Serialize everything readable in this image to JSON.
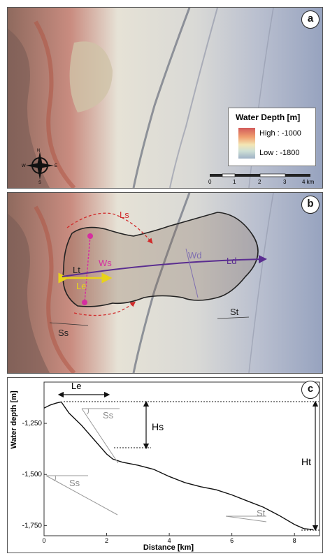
{
  "panel_a": {
    "badge": "a",
    "legend": {
      "title": "Water Depth [m]",
      "high": "High : -1000",
      "low": "Low : -1800"
    },
    "compass": {
      "n": "N",
      "s": "S",
      "e": "E",
      "w": "W"
    },
    "scalebar": {
      "ticks": [
        "0",
        "1",
        "2",
        "3",
        "4 km"
      ]
    }
  },
  "panel_b": {
    "badge": "b",
    "labels": {
      "ls": "Ls",
      "lt": "Lt",
      "ws": "Ws",
      "le": "Le",
      "wd": "Wd",
      "ld": "Ld",
      "st": "St",
      "ss": "Ss"
    }
  },
  "panel_c": {
    "badge": "c",
    "labels": {
      "le": "Le",
      "ss_upper": "Ss",
      "ss_lower": "Ss",
      "hs": "Hs",
      "ht": "Ht",
      "st": "St"
    },
    "chart_data": {
      "type": "line",
      "xlabel": "Distance [km]",
      "ylabel": "Water depth [m]",
      "xlim": [
        0,
        8.8
      ],
      "ylim": [
        -1800,
        -1130
      ],
      "x_ticks": [
        0,
        2,
        4,
        6,
        8
      ],
      "y_ticks": [
        "-1,250",
        "-1,500",
        "-1,750"
      ],
      "y_tick_values": [
        -1250,
        -1500,
        -1750
      ],
      "x": [
        0,
        0.2,
        0.4,
        0.55,
        0.8,
        1.2,
        1.6,
        2.0,
        2.2,
        2.5,
        3.0,
        3.5,
        4.0,
        4.5,
        5.0,
        5.5,
        6.0,
        6.5,
        7.0,
        7.5,
        8.0,
        8.3,
        8.6
      ],
      "y": [
        -1175,
        -1160,
        -1150,
        -1145,
        -1200,
        -1260,
        -1330,
        -1400,
        -1425,
        -1440,
        -1455,
        -1475,
        -1510,
        -1540,
        -1560,
        -1575,
        -1600,
        -1630,
        -1660,
        -1700,
        -1745,
        -1765,
        -1770
      ]
    }
  }
}
